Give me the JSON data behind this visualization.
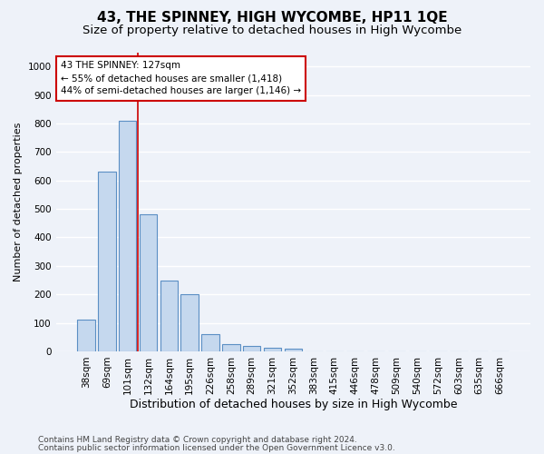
{
  "title": "43, THE SPINNEY, HIGH WYCOMBE, HP11 1QE",
  "subtitle": "Size of property relative to detached houses in High Wycombe",
  "xlabel": "Distribution of detached houses by size in High Wycombe",
  "ylabel": "Number of detached properties",
  "footer_line1": "Contains HM Land Registry data © Crown copyright and database right 2024.",
  "footer_line2": "Contains public sector information licensed under the Open Government Licence v3.0.",
  "categories": [
    "38sqm",
    "69sqm",
    "101sqm",
    "132sqm",
    "164sqm",
    "195sqm",
    "226sqm",
    "258sqm",
    "289sqm",
    "321sqm",
    "352sqm",
    "383sqm",
    "415sqm",
    "446sqm",
    "478sqm",
    "509sqm",
    "540sqm",
    "572sqm",
    "603sqm",
    "635sqm",
    "666sqm"
  ],
  "values": [
    110,
    630,
    810,
    480,
    250,
    200,
    60,
    25,
    18,
    12,
    10,
    0,
    0,
    0,
    0,
    0,
    0,
    0,
    0,
    0,
    0
  ],
  "bar_color": "#c5d8ee",
  "bar_edge_color": "#5b8fc4",
  "red_line_x": 2.5,
  "red_line_color": "#cc0000",
  "annotation_text": "43 THE SPINNEY: 127sqm\n← 55% of detached houses are smaller (1,418)\n44% of semi-detached houses are larger (1,146) →",
  "annotation_box_edge_color": "#cc0000",
  "annotation_box_face_color": "#ffffff",
  "ylim": [
    0,
    1050
  ],
  "yticks": [
    0,
    100,
    200,
    300,
    400,
    500,
    600,
    700,
    800,
    900,
    1000
  ],
  "background_color": "#eef2f9",
  "plot_background_color": "#eef2f9",
  "grid_color": "#ffffff",
  "title_fontsize": 11,
  "subtitle_fontsize": 9.5,
  "xlabel_fontsize": 9,
  "ylabel_fontsize": 8,
  "tick_fontsize": 7.5,
  "footer_fontsize": 6.5
}
